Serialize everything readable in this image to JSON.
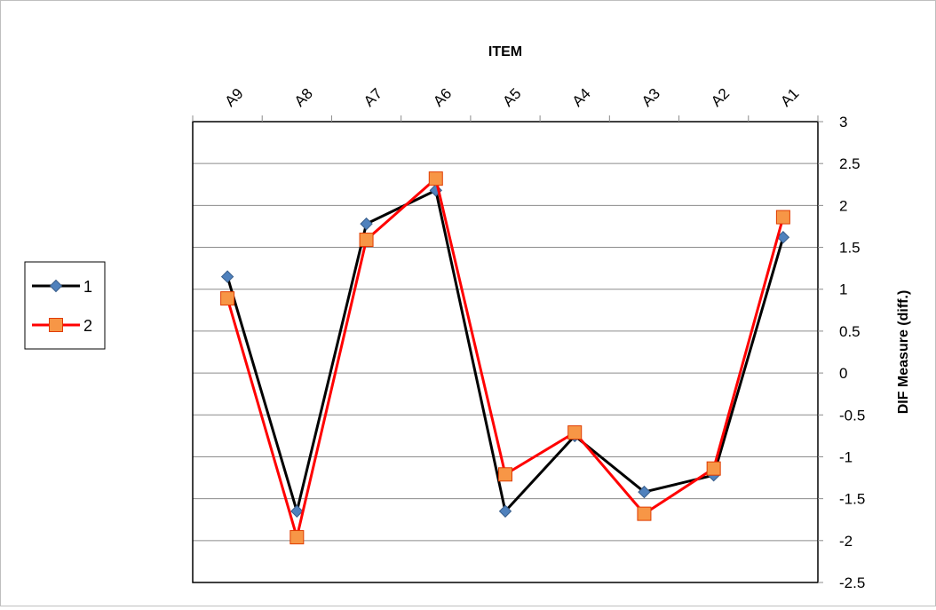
{
  "chart_data": {
    "type": "line",
    "xlabel": "ITEM",
    "ylabel": "DIF Measure (diff.)",
    "categories": [
      "A9",
      "A8",
      "A7",
      "A6",
      "A5",
      "A4",
      "A3",
      "A2",
      "A1"
    ],
    "ylim": [
      -2.5,
      3
    ],
    "yticks": [
      3,
      2.5,
      2,
      1.5,
      1,
      0.5,
      0,
      -0.5,
      -1,
      -1.5,
      -2,
      -2.5
    ],
    "grid": true,
    "legend_position": "left",
    "x_axis_position": "top",
    "y_axis_position": "right",
    "series": [
      {
        "name": "1",
        "values": [
          1.15,
          -1.65,
          1.78,
          2.18,
          -1.65,
          -0.75,
          -1.42,
          -1.22,
          1.62
        ],
        "color": "#000000",
        "marker": "diamond",
        "marker_fill": "#4f81bd"
      },
      {
        "name": "2",
        "values": [
          0.89,
          -1.96,
          1.59,
          2.32,
          -1.21,
          -0.71,
          -1.68,
          -1.14,
          1.86
        ],
        "color": "#ff0000",
        "marker": "square",
        "marker_fill": "#f79646"
      }
    ]
  }
}
